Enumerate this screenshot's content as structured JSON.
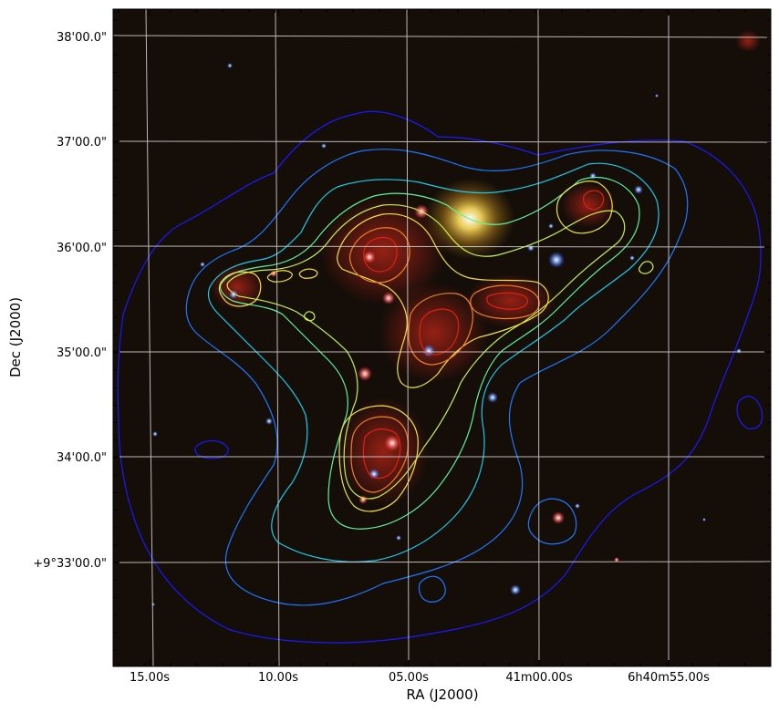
{
  "figure": {
    "xlabel": "RA (J2000)",
    "ylabel": "Dec (J2000)",
    "x_ticks": [
      "15.00s",
      "10.00s",
      "05.00s",
      "41m00.00s",
      "6h40m55.00s"
    ],
    "y_ticks": [
      "38'00.0\"",
      "37'00.0\"",
      "36'00.0\"",
      "35'00.0\"",
      "34'00.0\"",
      "+9°33'00.0\""
    ],
    "grid": true,
    "colors": {
      "background": "#140d08",
      "grid": "#d8d8d8",
      "contour_levels": [
        "#1a1aff",
        "#1e78ff",
        "#20c8e8",
        "#60f0a0",
        "#c8f050",
        "#f0e040",
        "#f08020",
        "#e02010"
      ]
    }
  }
}
